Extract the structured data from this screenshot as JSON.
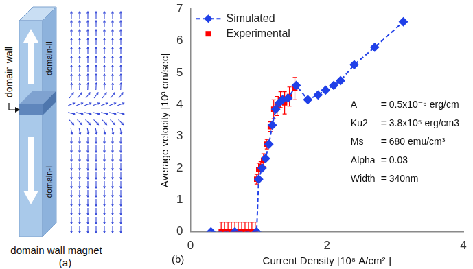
{
  "diagram": {
    "panel": "(a)",
    "caption": "domain wall magnet",
    "domain_wall": "domain wall",
    "domain_upper": "domain-II",
    "domain_lower": "domain-I"
  },
  "chart_data": {
    "type": "line",
    "panel": "(b)",
    "x_label": "Current Density [10⁸ A/cm² ]",
    "y_label": "Average velocity [10³ cm/sec]",
    "xlim": [
      0,
      4
    ],
    "xticks": [
      0,
      2,
      4
    ],
    "ylim": [
      0,
      7
    ],
    "yticks": [
      0,
      1,
      2,
      3,
      4,
      5,
      6,
      7
    ],
    "grid": false,
    "legend": "upper left",
    "annotations": [
      "A = 0.5x10⁻⁶ erg/cm",
      "Ku2 = 3.8x10⁵ erg/cm3",
      "Ms = 680 emu/cm³",
      "Alpha = 0.03",
      "Width = 340nm"
    ],
    "series": [
      {
        "name": "Simulated",
        "color": "#2040e8",
        "marker": "diamond",
        "line_style": "dashed",
        "x": [
          0.3,
          0.65,
          0.97,
          1.0,
          1.05,
          1.1,
          1.15,
          1.2,
          1.25,
          1.3,
          1.35,
          1.43,
          1.55,
          1.72,
          1.87,
          1.98,
          2.1,
          2.2,
          2.4,
          2.7,
          3.12
        ],
        "values": [
          0,
          0,
          0,
          1.65,
          2.0,
          2.3,
          2.75,
          3.35,
          3.85,
          4.05,
          4.15,
          4.2,
          4.6,
          4.15,
          4.3,
          4.45,
          4.6,
          4.75,
          5.25,
          5.8,
          6.6
        ]
      },
      {
        "name": "Experimental",
        "color": "#ff0000",
        "marker": "square",
        "line_style": "none",
        "x": [
          0.45,
          0.5,
          0.55,
          0.6,
          0.65,
          0.7,
          0.75,
          0.8,
          0.85,
          0.9,
          0.95,
          0.97,
          1.0,
          1.03,
          1.07,
          1.12,
          1.17,
          1.22,
          1.27,
          1.32,
          1.38,
          1.45,
          1.53
        ],
        "values": [
          0,
          0,
          0,
          0,
          0,
          0,
          0,
          0,
          0,
          0,
          0,
          1.65,
          1.95,
          2.05,
          2.25,
          2.75,
          3.3,
          3.85,
          3.95,
          4.15,
          4.05,
          4.25,
          4.5
        ],
        "errors": [
          0.3,
          0.3,
          0.3,
          0.3,
          0.3,
          0.3,
          0.3,
          0.3,
          0.3,
          0.3,
          0.3,
          0.15,
          0.2,
          0.15,
          0.2,
          0.15,
          0.15,
          0.3,
          0.3,
          0.25,
          0.35,
          0.3,
          0.35
        ]
      }
    ]
  }
}
